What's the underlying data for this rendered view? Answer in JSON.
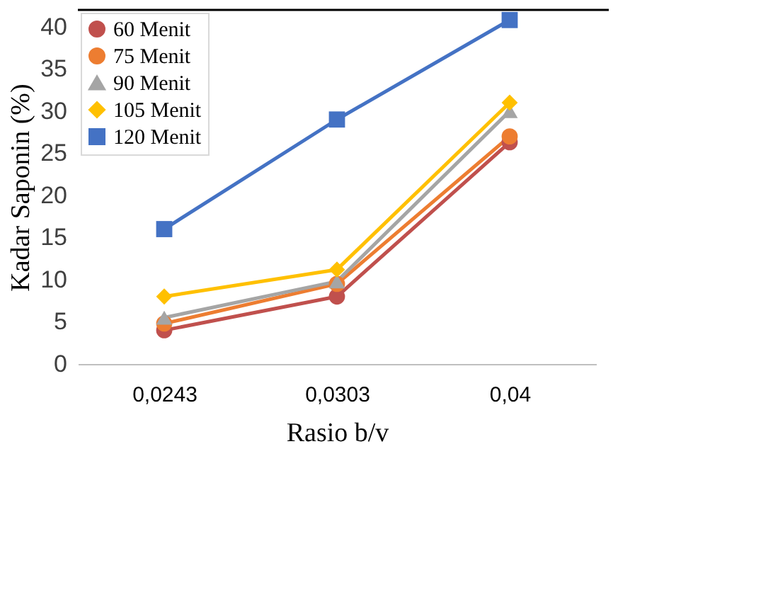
{
  "chart_data": {
    "type": "line",
    "xlabel": "Rasio b/v",
    "ylabel": "Kadar Saponin (%)",
    "categories": [
      "0,0243",
      "0,0303",
      "0,04"
    ],
    "series": [
      {
        "name": "60 Menit",
        "color": "#c0504d",
        "marker": "circle",
        "values": [
          4,
          8,
          26.3
        ]
      },
      {
        "name": "75 Menit",
        "color": "#ed7d31",
        "marker": "circle",
        "values": [
          4.8,
          9.5,
          27
        ]
      },
      {
        "name": "90 Menit",
        "color": "#a5a5a5",
        "marker": "triangle",
        "values": [
          5.5,
          9.8,
          30
        ]
      },
      {
        "name": "105 Menit",
        "color": "#ffc000",
        "marker": "diamond",
        "values": [
          8,
          11.2,
          31
        ]
      },
      {
        "name": "120 Menit",
        "color": "#4472c4",
        "marker": "square",
        "values": [
          16,
          29,
          40.8
        ]
      }
    ],
    "ylim": [
      0,
      42
    ],
    "yticks": [
      0,
      5,
      10,
      15,
      20,
      25,
      30,
      35,
      40
    ],
    "grid": false,
    "legend": "top left",
    "line_style": "solid"
  }
}
